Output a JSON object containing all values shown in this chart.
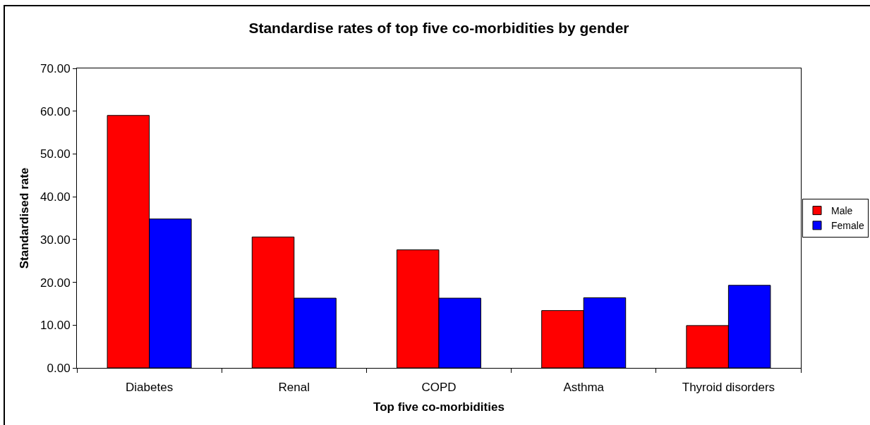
{
  "chart_data": {
    "type": "bar",
    "title": "Standardise rates of top five co-morbidities by gender",
    "xlabel": "Top five co-morbidities",
    "ylabel": "Standardised rate",
    "categories": [
      "Diabetes",
      "Renal",
      "COPD",
      "Asthma",
      "Thyroid disorders"
    ],
    "series": [
      {
        "name": "Male",
        "color": "#ff0000",
        "values": [
          59.0,
          30.6,
          27.6,
          13.4,
          9.9
        ]
      },
      {
        "name": "Female",
        "color": "#0000ff",
        "values": [
          34.8,
          16.3,
          16.3,
          16.4,
          19.3
        ]
      }
    ],
    "ylim": [
      0,
      70
    ],
    "yticks": [
      {
        "value": 0,
        "label": "0.00"
      },
      {
        "value": 10,
        "label": "10.00"
      },
      {
        "value": 20,
        "label": "20.00"
      },
      {
        "value": 30,
        "label": "30.00"
      },
      {
        "value": 40,
        "label": "40.00"
      },
      {
        "value": 50,
        "label": "50.00"
      },
      {
        "value": 60,
        "label": "60.00"
      },
      {
        "value": 70,
        "label": "70.00"
      }
    ],
    "legend": "right"
  }
}
